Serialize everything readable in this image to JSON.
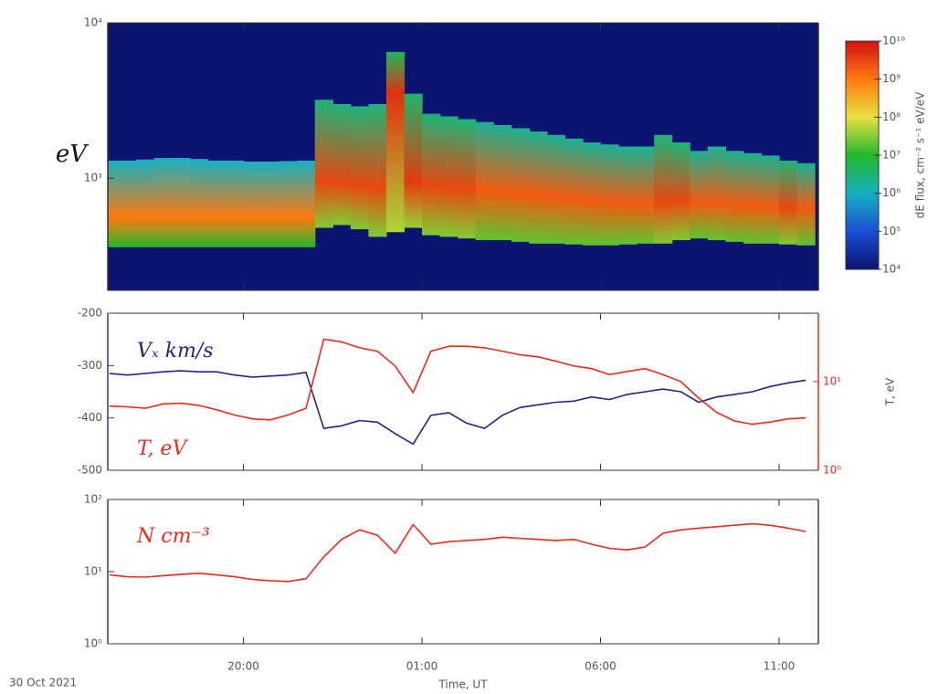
{
  "chart_data": [
    {
      "type": "spectrogram",
      "ylabel": "eV",
      "x": [
        16.25,
        16.75,
        17.25,
        17.75,
        18.25,
        18.75,
        19.25,
        19.75,
        20.25,
        20.75,
        21.25,
        21.75,
        22.25,
        22.75,
        23.25,
        23.75,
        24.25,
        24.75,
        25.25,
        25.75,
        26.25,
        26.75,
        27.25,
        27.75,
        28.25,
        28.75,
        29.25,
        29.75,
        30.25,
        30.75,
        31.25,
        31.75,
        32.25,
        32.75,
        33.25,
        33.75,
        34.25,
        34.75,
        35.25,
        35.75
      ],
      "xlim": [
        16.2,
        36.1
      ],
      "xticks": [
        20,
        25,
        30,
        35
      ],
      "ylim": [
        190,
        10000
      ],
      "ylog": true,
      "yticks": [
        {
          "value": 1000,
          "label": "10³"
        },
        {
          "value": 10000,
          "label": "10⁴"
        }
      ],
      "background": "#0b1470",
      "energy_low": [
        360,
        360,
        360,
        360,
        360,
        360,
        360,
        360,
        360,
        360,
        360,
        360,
        480,
        500,
        470,
        420,
        450,
        480,
        430,
        420,
        410,
        400,
        400,
        390,
        380,
        380,
        375,
        370,
        370,
        375,
        380,
        380,
        400,
        410,
        400,
        390,
        380,
        380,
        375,
        370
      ],
      "energy_peak": [
        560,
        560,
        560,
        560,
        560,
        560,
        560,
        560,
        560,
        560,
        560,
        560,
        950,
        930,
        900,
        880,
        3500,
        950,
        900,
        880,
        860,
        840,
        820,
        800,
        780,
        760,
        740,
        720,
        700,
        690,
        680,
        700,
        720,
        700,
        690,
        680,
        670,
        660,
        650,
        640
      ],
      "energy_high": [
        1300,
        1300,
        1320,
        1350,
        1350,
        1330,
        1300,
        1300,
        1280,
        1280,
        1290,
        1300,
        3200,
        3000,
        2900,
        3000,
        6500,
        3500,
        2600,
        2500,
        2400,
        2300,
        2200,
        2100,
        2000,
        1900,
        1800,
        1700,
        1650,
        1600,
        1600,
        1900,
        1700,
        1500,
        1600,
        1500,
        1450,
        1400,
        1300,
        1250
      ],
      "peak_flux": [
        1000000000.0,
        1000000000.0,
        1000000000.0,
        1000000000.0,
        1000000000.0,
        1000000000.0,
        1000000000.0,
        1000000000.0,
        1000000000.0,
        1000000000.0,
        1000000000.0,
        1000000000.0,
        3000000000.0,
        3000000000.0,
        3000000000.0,
        3000000000.0,
        5000000000.0,
        4000000000.0,
        3000000000.0,
        3000000000.0,
        3000000000.0,
        2000000000.0,
        2000000000.0,
        2000000000.0,
        2000000000.0,
        2000000000.0,
        2000000000.0,
        2000000000.0,
        2000000000.0,
        2000000000.0,
        2000000000.0,
        3000000000.0,
        3000000000.0,
        2000000000.0,
        2000000000.0,
        2000000000.0,
        2000000000.0,
        2000000000.0,
        3000000000.0,
        2000000000.0
      ],
      "colorbar": {
        "label": "dE flux, cm⁻² s⁻¹ eV/eV",
        "lim": [
          10000.0,
          10000000000.0
        ],
        "log": true,
        "ticks": [
          {
            "value": 10000.0,
            "label": "10⁴"
          },
          {
            "value": 100000.0,
            "label": "10⁵"
          },
          {
            "value": 1000000.0,
            "label": "10⁶"
          },
          {
            "value": 10000000.0,
            "label": "10⁷"
          },
          {
            "value": 100000000.0,
            "label": "10⁸"
          },
          {
            "value": 1000000000.0,
            "label": "10⁹"
          },
          {
            "value": 10000000000.0,
            "label": "10¹⁰"
          }
        ],
        "colors": [
          "#0b1470",
          "#1a4fd6",
          "#16b0c0",
          "#22b82a",
          "#e8e040",
          "#ff7a10",
          "#d41010"
        ]
      }
    },
    {
      "type": "line",
      "x": [
        16.25,
        16.75,
        17.25,
        17.75,
        18.25,
        18.75,
        19.25,
        19.75,
        20.25,
        20.75,
        21.25,
        21.75,
        22.25,
        22.75,
        23.25,
        23.75,
        24.25,
        24.75,
        25.25,
        25.75,
        26.25,
        26.75,
        27.25,
        27.75,
        28.25,
        28.75,
        29.25,
        29.75,
        30.25,
        30.75,
        31.25,
        31.75,
        32.25,
        32.75,
        33.25,
        33.75,
        34.25,
        34.75,
        35.25,
        35.75
      ],
      "xlim": [
        16.2,
        36.1
      ],
      "xticks": [
        20,
        25,
        30,
        35
      ],
      "ylim": [
        -500,
        -200
      ],
      "yticks": [
        -500,
        -400,
        -300,
        -200
      ],
      "y2lim": [
        1,
        59
      ],
      "y2log": true,
      "y2label": "T, eV",
      "y2ticks": [
        {
          "value": 1,
          "label": "10⁰"
        },
        {
          "value": 10,
          "label": "10¹"
        }
      ],
      "series": [
        {
          "name": "Vₓ km/s",
          "color": "#23238f",
          "values": [
            -315,
            -318,
            -315,
            -312,
            -310,
            -312,
            -312,
            -318,
            -322,
            -320,
            -318,
            -313,
            -420,
            -415,
            -405,
            -408,
            -430,
            -450,
            -395,
            -390,
            -410,
            -420,
            -395,
            -380,
            -375,
            -370,
            -368,
            -360,
            -365,
            -355,
            -350,
            -345,
            -350,
            -370,
            -360,
            -355,
            -350,
            -340,
            -333,
            -328
          ]
        },
        {
          "name": "T, eV",
          "color": "#ee2a1a",
          "axis": "y2",
          "values": [
            5.3,
            5.2,
            5.0,
            5.6,
            5.7,
            5.4,
            4.8,
            4.2,
            3.8,
            3.7,
            4.2,
            5.0,
            30,
            28,
            24,
            22,
            15,
            7.5,
            22,
            25,
            25,
            24,
            22,
            20,
            19,
            17,
            15,
            14,
            12,
            13,
            14,
            12,
            10,
            6.5,
            4.5,
            3.6,
            3.3,
            3.5,
            3.8,
            3.9
          ]
        }
      ]
    },
    {
      "type": "line",
      "x": [
        16.25,
        16.75,
        17.25,
        17.75,
        18.25,
        18.75,
        19.25,
        19.75,
        20.25,
        20.75,
        21.25,
        21.75,
        22.25,
        22.75,
        23.25,
        23.75,
        24.25,
        24.75,
        25.25,
        25.75,
        26.25,
        26.75,
        27.25,
        27.75,
        28.25,
        28.75,
        29.25,
        29.75,
        30.25,
        30.75,
        31.25,
        31.75,
        32.25,
        32.75,
        33.25,
        33.75,
        34.25,
        34.75,
        35.25,
        35.75
      ],
      "xlim": [
        16.2,
        36.1
      ],
      "xticks": [
        {
          "value": 20,
          "label": "20:00"
        },
        {
          "value": 25,
          "label": "01:00"
        },
        {
          "value": 30,
          "label": "06:00"
        },
        {
          "value": 35,
          "label": "11:00"
        }
      ],
      "xlabel": "Time, UT",
      "date": "30 Oct 2021",
      "ylim": [
        1,
        100
      ],
      "ylog": true,
      "yticks": [
        {
          "value": 1,
          "label": "10⁰"
        },
        {
          "value": 10,
          "label": "10¹"
        },
        {
          "value": 100,
          "label": "10²"
        }
      ],
      "series": [
        {
          "name": "N cm⁻³",
          "color": "#ee2a1a",
          "values": [
            9,
            8.5,
            8.4,
            8.8,
            9.2,
            9.5,
            9,
            8.5,
            7.8,
            7.5,
            7.3,
            8,
            16,
            28,
            38,
            32,
            18,
            45,
            24,
            26,
            27,
            28,
            30,
            29,
            28,
            27,
            28,
            24,
            21,
            20,
            22,
            34,
            38,
            40,
            42,
            44,
            46,
            44,
            40,
            36
          ]
        }
      ]
    }
  ]
}
